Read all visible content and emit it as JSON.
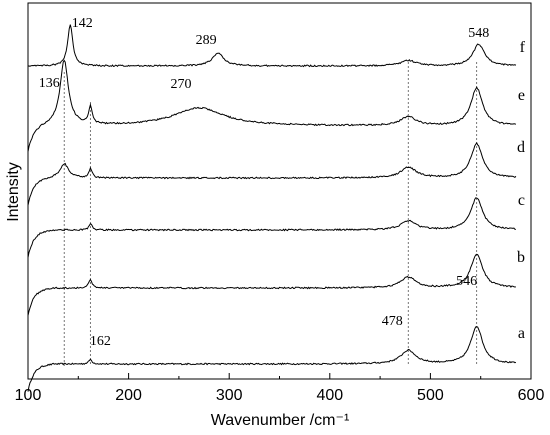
{
  "chart_data": {
    "type": "line",
    "title": "",
    "xlabel": "Wavenumber /cm⁻¹",
    "ylabel": "Intensity",
    "xlim": [
      100,
      600
    ],
    "xticks": [
      100,
      200,
      300,
      400,
      500,
      600
    ],
    "yticks_shown": false,
    "grid": false,
    "legend": "none",
    "stacked_offset": true,
    "series": [
      {
        "label": "a",
        "peaks": [
          {
            "x": 162,
            "h": 0.25
          },
          {
            "x": 478,
            "h": 0.75
          },
          {
            "x": 546,
            "h": 2.1
          }
        ]
      },
      {
        "label": "b",
        "peaks": [
          {
            "x": 162,
            "h": 0.5
          },
          {
            "x": 478,
            "h": 0.6
          },
          {
            "x": 546,
            "h": 1.9
          }
        ]
      },
      {
        "label": "c",
        "peaks": [
          {
            "x": 162,
            "h": 0.35
          },
          {
            "x": 478,
            "h": 0.5
          },
          {
            "x": 546,
            "h": 1.8
          }
        ]
      },
      {
        "label": "d",
        "peaks": [
          {
            "x": 136,
            "h": 0.8
          },
          {
            "x": 162,
            "h": 0.5
          },
          {
            "x": 478,
            "h": 0.6
          },
          {
            "x": 546,
            "h": 1.9
          }
        ]
      },
      {
        "label": "e",
        "peaks": [
          {
            "x": 136,
            "h": 3.6
          },
          {
            "x": 162,
            "h": 1.0
          },
          {
            "x": 270,
            "h": 1.0
          },
          {
            "x": 478,
            "h": 0.5
          },
          {
            "x": 546,
            "h": 2.1
          }
        ]
      },
      {
        "label": "f",
        "peaks": [
          {
            "x": 142,
            "h": 2.3
          },
          {
            "x": 289,
            "h": 0.7
          },
          {
            "x": 478,
            "h": 0.3
          },
          {
            "x": 548,
            "h": 1.2
          }
        ]
      }
    ],
    "annotations": [
      {
        "text": "142",
        "x": 142,
        "series": "f"
      },
      {
        "text": "289",
        "x": 289,
        "series": "f"
      },
      {
        "text": "548",
        "x": 548,
        "series": "f"
      },
      {
        "text": "136",
        "x": 136,
        "series": "e"
      },
      {
        "text": "270",
        "x": 270,
        "series": "e"
      },
      {
        "text": "162",
        "x": 162,
        "series": "a"
      },
      {
        "text": "478",
        "x": 478,
        "series": "a"
      },
      {
        "text": "546",
        "x": 546,
        "series": "a"
      }
    ],
    "reference_lines_x": [
      136,
      162,
      478,
      546
    ]
  }
}
